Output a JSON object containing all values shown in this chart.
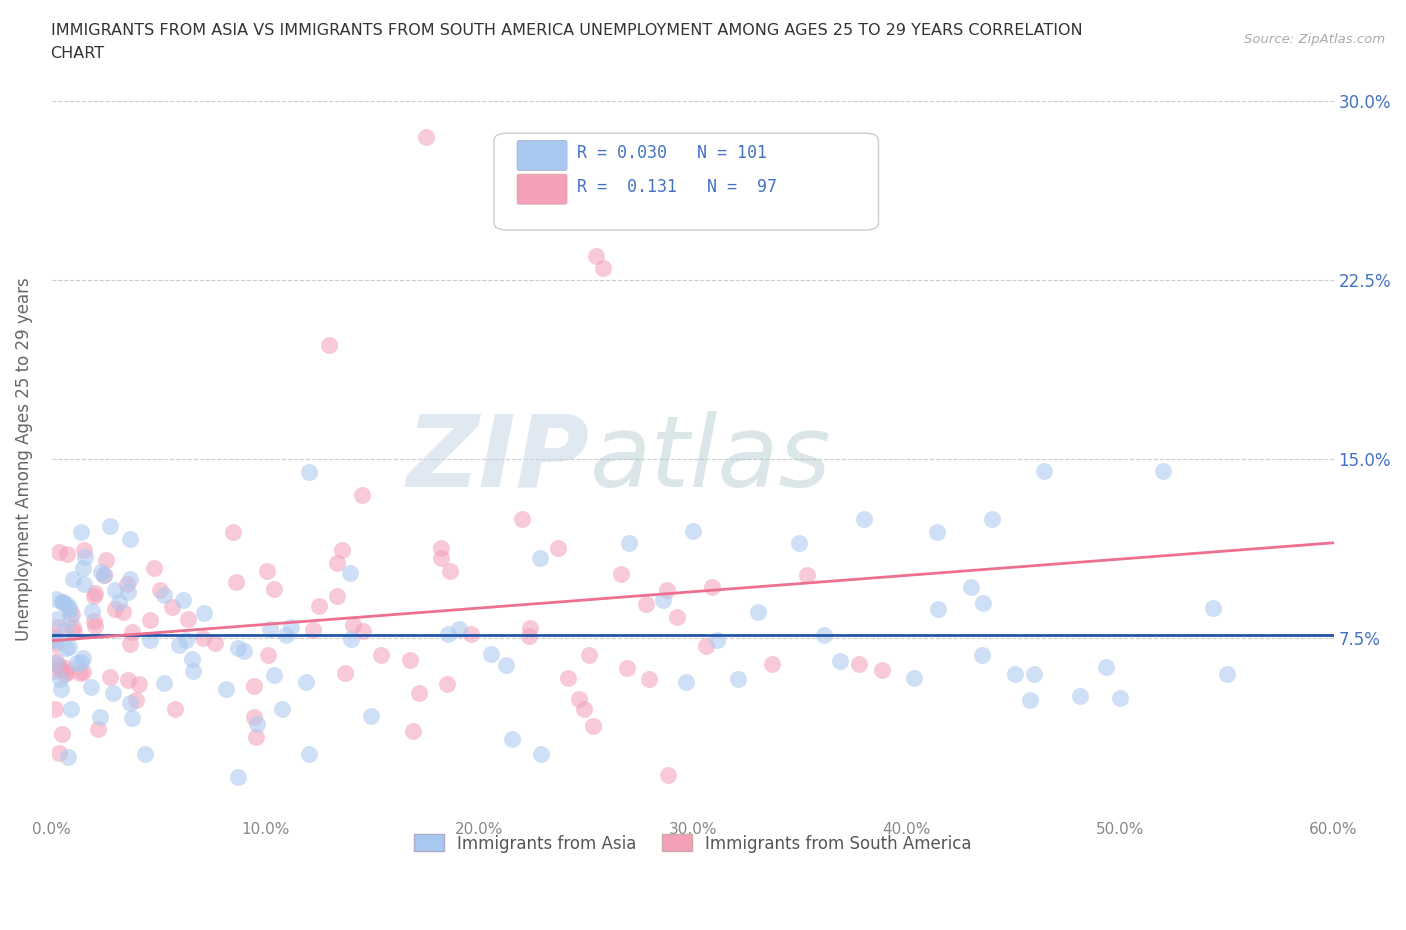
{
  "title_line1": "IMMIGRANTS FROM ASIA VS IMMIGRANTS FROM SOUTH AMERICA UNEMPLOYMENT AMONG AGES 25 TO 29 YEARS CORRELATION",
  "title_line2": "CHART",
  "source": "Source: ZipAtlas.com",
  "ylabel": "Unemployment Among Ages 25 to 29 years",
  "legend_label1": "Immigrants from Asia",
  "legend_label2": "Immigrants from South America",
  "R1": 0.03,
  "N1": 101,
  "R2": 0.131,
  "N2": 97,
  "color1": "#A8C8F0",
  "color2": "#F4A0B8",
  "trendline_color1": "#2255AA",
  "trendline_color2": "#EE7090",
  "xlim": [
    0.0,
    0.6
  ],
  "ylim": [
    0.0,
    0.3
  ],
  "xticks": [
    0.0,
    0.1,
    0.2,
    0.3,
    0.4,
    0.5,
    0.6
  ],
  "yticks": [
    0.0,
    0.075,
    0.15,
    0.225,
    0.3
  ],
  "xticklabels": [
    "0.0%",
    "10.0%",
    "20.0%",
    "30.0%",
    "40.0%",
    "50.0%",
    "60.0%"
  ],
  "left_yticklabels": [
    "",
    "",
    "",
    "",
    ""
  ],
  "right_yticklabels": [
    "",
    "7.5%",
    "15.0%",
    "22.5%",
    "30.0%"
  ],
  "watermark_zip": "ZIP",
  "watermark_atlas": "atlas",
  "background_color": "#FFFFFF",
  "seed": 42,
  "asia_trend_start": 0.0762,
  "asia_trend_end": 0.0762,
  "sa_trend_start": 0.074,
  "sa_trend_end": 0.115
}
